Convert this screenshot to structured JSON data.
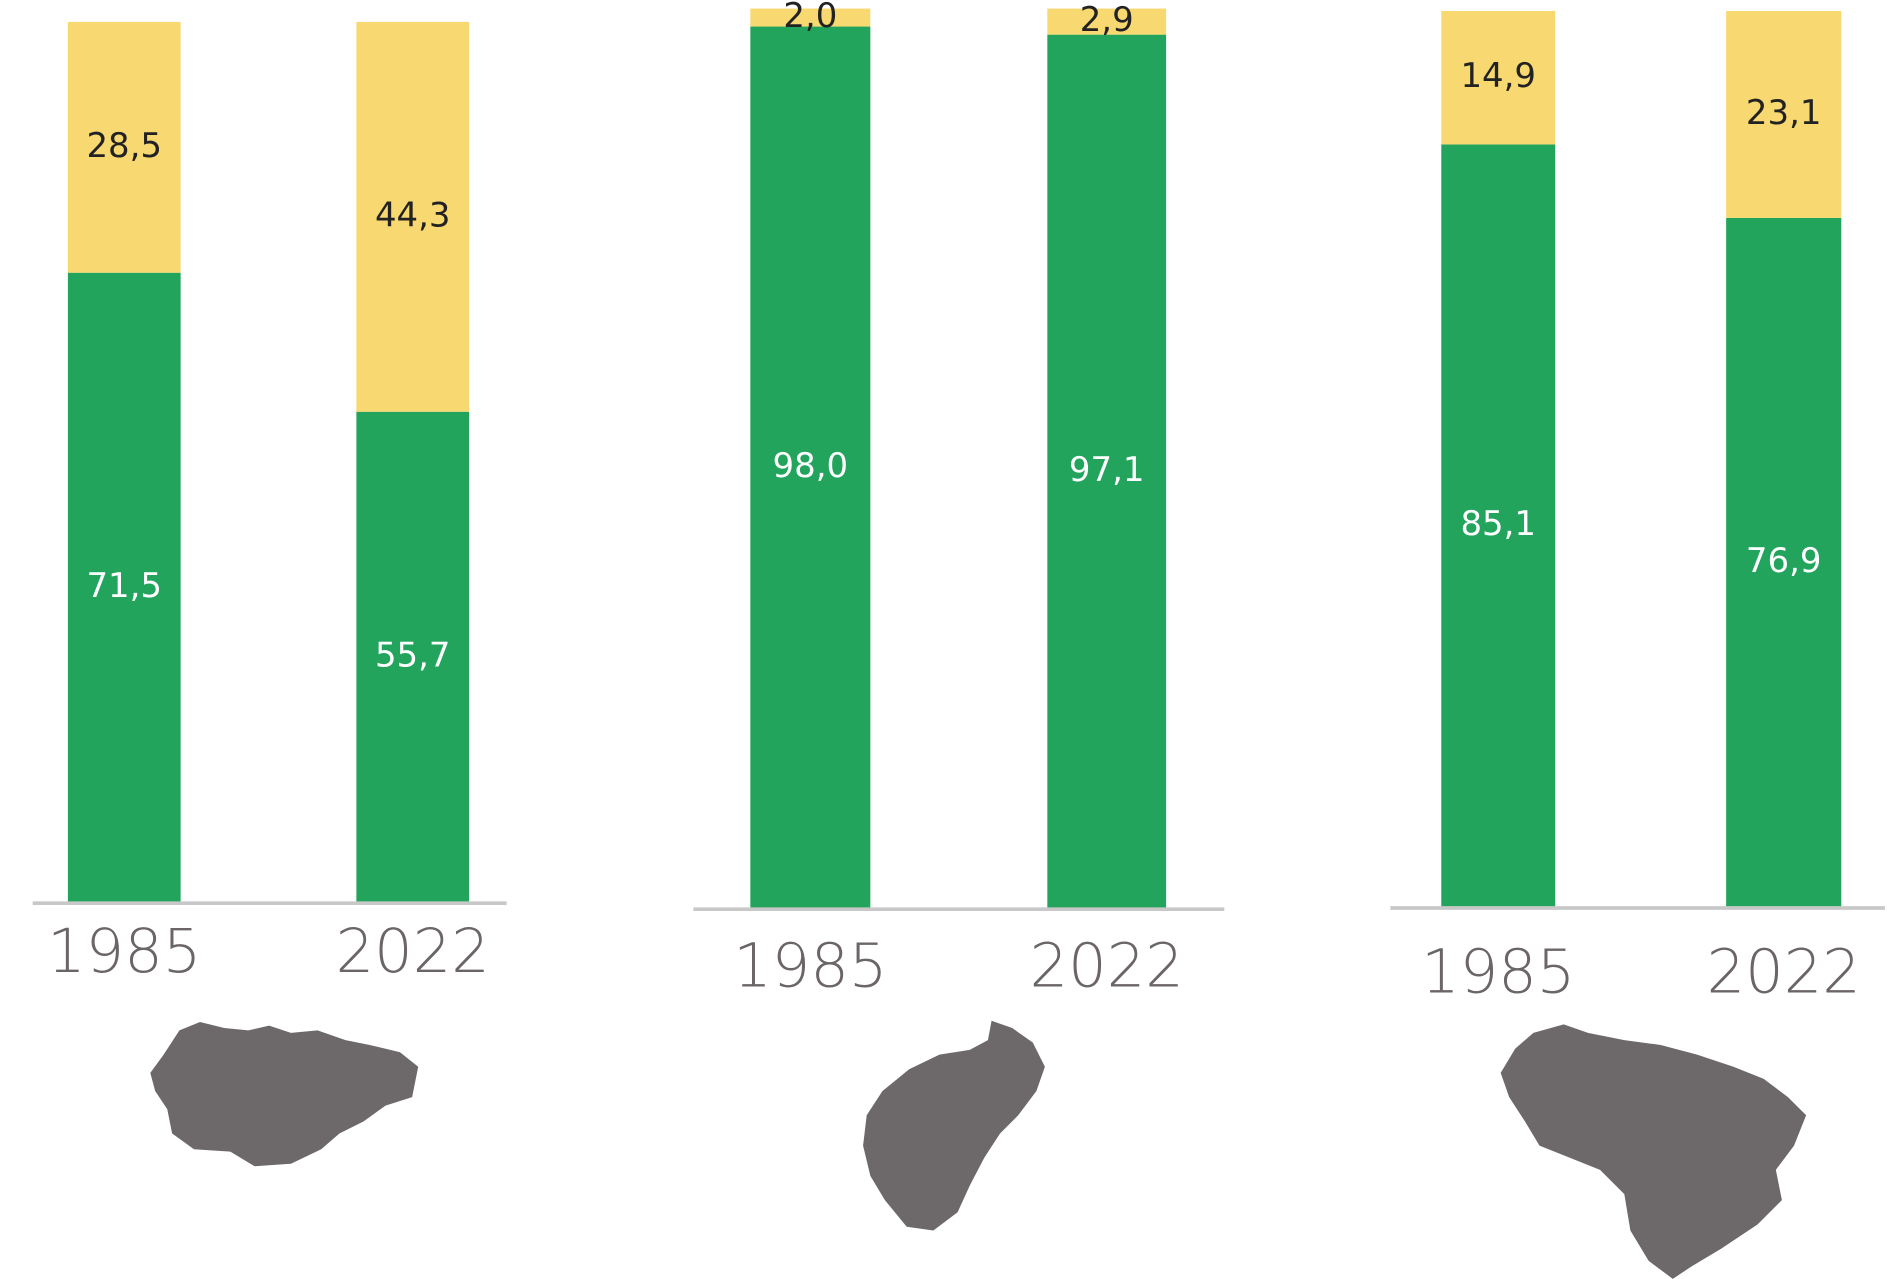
{
  "chart_data": [
    {
      "type": "bar",
      "stacked": true,
      "categories": [
        "1985",
        "2022"
      ],
      "ylim": [
        0,
        100
      ],
      "series": [
        {
          "color": "#22a45d",
          "values": [
            71.5,
            55.7
          ],
          "value_labels": [
            "71,5",
            "55,7"
          ]
        },
        {
          "color": "#f8d870",
          "values": [
            28.5,
            44.3
          ],
          "value_labels": [
            "28,5",
            "44,3"
          ]
        }
      ]
    },
    {
      "type": "bar",
      "stacked": true,
      "categories": [
        "1985",
        "2022"
      ],
      "ylim": [
        0,
        100
      ],
      "series": [
        {
          "color": "#22a45d",
          "values": [
            98.0,
            97.1
          ],
          "value_labels": [
            "98,0",
            "97,1"
          ]
        },
        {
          "color": "#f8d870",
          "values": [
            2.0,
            2.9
          ],
          "value_labels": [
            "2,0",
            "2,9"
          ]
        }
      ]
    },
    {
      "type": "bar",
      "stacked": true,
      "categories": [
        "1985",
        "2022"
      ],
      "ylim": [
        0,
        100
      ],
      "series": [
        {
          "color": "#22a45d",
          "values": [
            85.1,
            76.9
          ],
          "value_labels": [
            "85,1",
            "76,9"
          ]
        },
        {
          "color": "#f8d870",
          "values": [
            14.9,
            23.1
          ],
          "value_labels": [
            "14,9",
            "23,1"
          ]
        }
      ]
    }
  ]
}
